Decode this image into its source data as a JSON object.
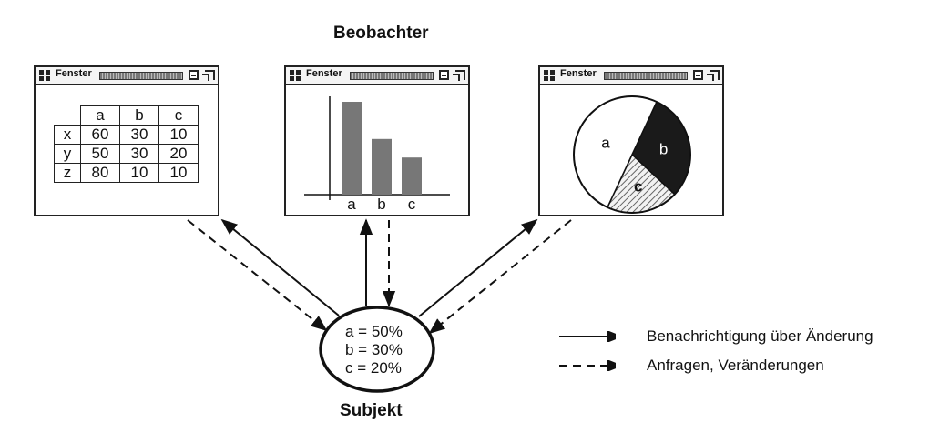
{
  "observers_title": "Beobachter",
  "subject_title": "Subjekt",
  "window_title": "Fenster",
  "table": {
    "columns": [
      "a",
      "b",
      "c"
    ],
    "rows": [
      {
        "label": "x",
        "values": [
          "60",
          "30",
          "10"
        ]
      },
      {
        "label": "y",
        "values": [
          "50",
          "30",
          "20"
        ]
      },
      {
        "label": "z",
        "values": [
          "80",
          "10",
          "10"
        ]
      }
    ]
  },
  "bar_chart": {
    "categories": [
      "a",
      "b",
      "c"
    ],
    "values": [
      50,
      30,
      20
    ]
  },
  "pie_chart": {
    "labels": [
      "a",
      "b",
      "c"
    ],
    "values": [
      50,
      30,
      20
    ]
  },
  "subject_values": [
    "a = 50%",
    "b = 30%",
    "c = 20%"
  ],
  "legend": {
    "solid": "Benachrichtigung über Änderung",
    "dashed": "Anfragen, Veränderungen"
  }
}
